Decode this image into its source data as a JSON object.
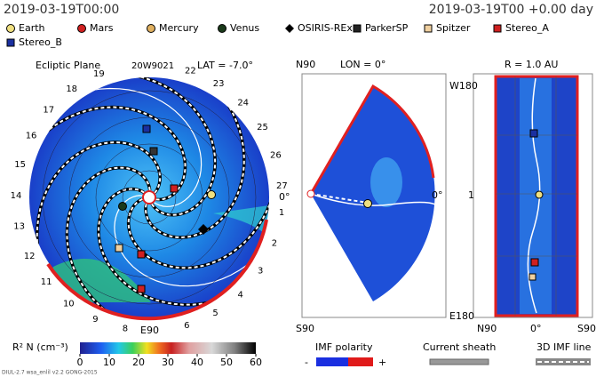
{
  "header": {
    "left": "2019-03-19T00:00",
    "right": "2019-03-19T00 +0.00 day"
  },
  "legend": [
    "Earth",
    "Mars",
    "Mercury",
    "Venus",
    "OSIRIS-REx",
    "ParkerSP",
    "Spitzer",
    "Stereo_A",
    "Stereo_B"
  ],
  "ecliptic": {
    "title": "Ecliptic Plane",
    "code": "20W9021",
    "lat": "LAT = -7.0°",
    "angle_labels": [
      1,
      2,
      3,
      4,
      5,
      6,
      8,
      9,
      10,
      11,
      12,
      13,
      14,
      15,
      16,
      17,
      18,
      19,
      22,
      23,
      24,
      25,
      26,
      27
    ],
    "right": "0°",
    "bottom": "E90"
  },
  "meridian": {
    "top": "N90",
    "lon": "LON = 0°",
    "right": "0°",
    "bottom": "S90"
  },
  "radial": {
    "title": "R = 1.0 AU",
    "top": "W180",
    "mid": "1",
    "bottom": "E180",
    "x_labels": [
      "N90",
      "0°",
      "S90"
    ]
  },
  "colorbar": {
    "label": "R² N (cm⁻³)",
    "ticks": [
      0,
      10,
      20,
      30,
      40,
      50,
      60
    ]
  },
  "imf": {
    "label": "IMF polarity",
    "minus": "-",
    "plus": "+"
  },
  "sheath": "Current sheath",
  "imf_line": "3D IMF line",
  "footer": "DIUL-2.7 wsa_enlil v2.2 GONG-2015"
}
